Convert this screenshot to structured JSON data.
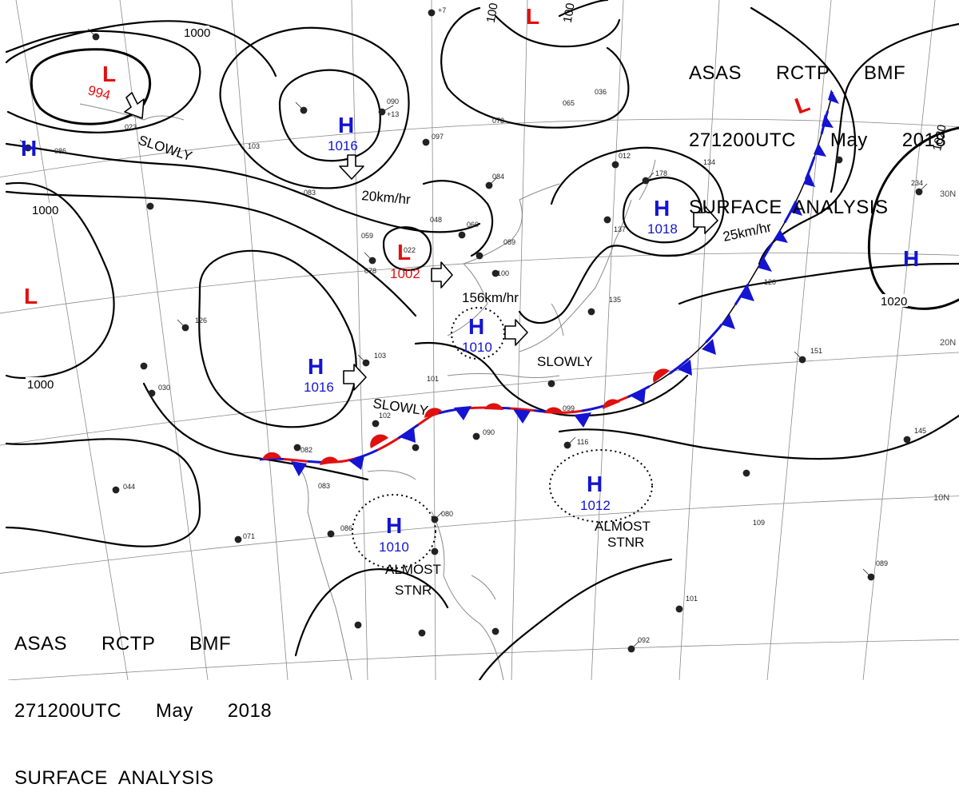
{
  "header": {
    "line1": "ASAS      RCTP      BMF",
    "line2": "271200UTC      May      2018",
    "line3": "SURFACE  ANALYSIS"
  },
  "colors": {
    "high": "#1414d2",
    "low": "#e01010",
    "isobar": "#000000",
    "grid": "#8a8a8a",
    "coast": "#8a8a8a"
  },
  "isobar_labels": [
    "1000",
    "1000",
    "1000",
    "1000",
    "1020",
    "1020",
    "100",
    "100"
  ],
  "pressure_systems": [
    {
      "type": "L",
      "value": "994"
    },
    {
      "type": "H",
      "value": ""
    },
    {
      "type": "H",
      "value": "1016"
    },
    {
      "type": "L",
      "value": "1002"
    },
    {
      "type": "L",
      "value": ""
    },
    {
      "type": "H",
      "value": "1016"
    },
    {
      "type": "H",
      "value": "1010"
    },
    {
      "type": "L",
      "value": ""
    },
    {
      "type": "H",
      "value": "1018"
    },
    {
      "type": "L",
      "value": ""
    },
    {
      "type": "H",
      "value": ""
    },
    {
      "type": "H",
      "value": "1012"
    },
    {
      "type": "H",
      "value": "1010"
    }
  ],
  "motion_labels": [
    "SLOWLY",
    "20km/hr",
    "156km/hr",
    "25km/hr",
    "SLOWLY",
    "SLOWLY",
    "ALMOST",
    "STNR",
    "ALMOST",
    "STNR"
  ],
  "latitude_labels": [
    "30N",
    "20N",
    "10N"
  ],
  "station_numbers": [
    "+7",
    "+13",
    "084",
    "048",
    "059",
    "078",
    "022",
    "060",
    "089",
    "100",
    "126",
    "103",
    "101",
    "102",
    "090",
    "082",
    "083",
    "080",
    "086",
    "071",
    "044",
    "030",
    "099",
    "116",
    "178",
    "134",
    "151",
    "145",
    "089",
    "101",
    "092",
    "109",
    "137",
    "135",
    "120",
    "234",
    "065",
    "036",
    "090",
    "097",
    "073",
    "012",
    "083",
    "103",
    "023",
    "086"
  ]
}
